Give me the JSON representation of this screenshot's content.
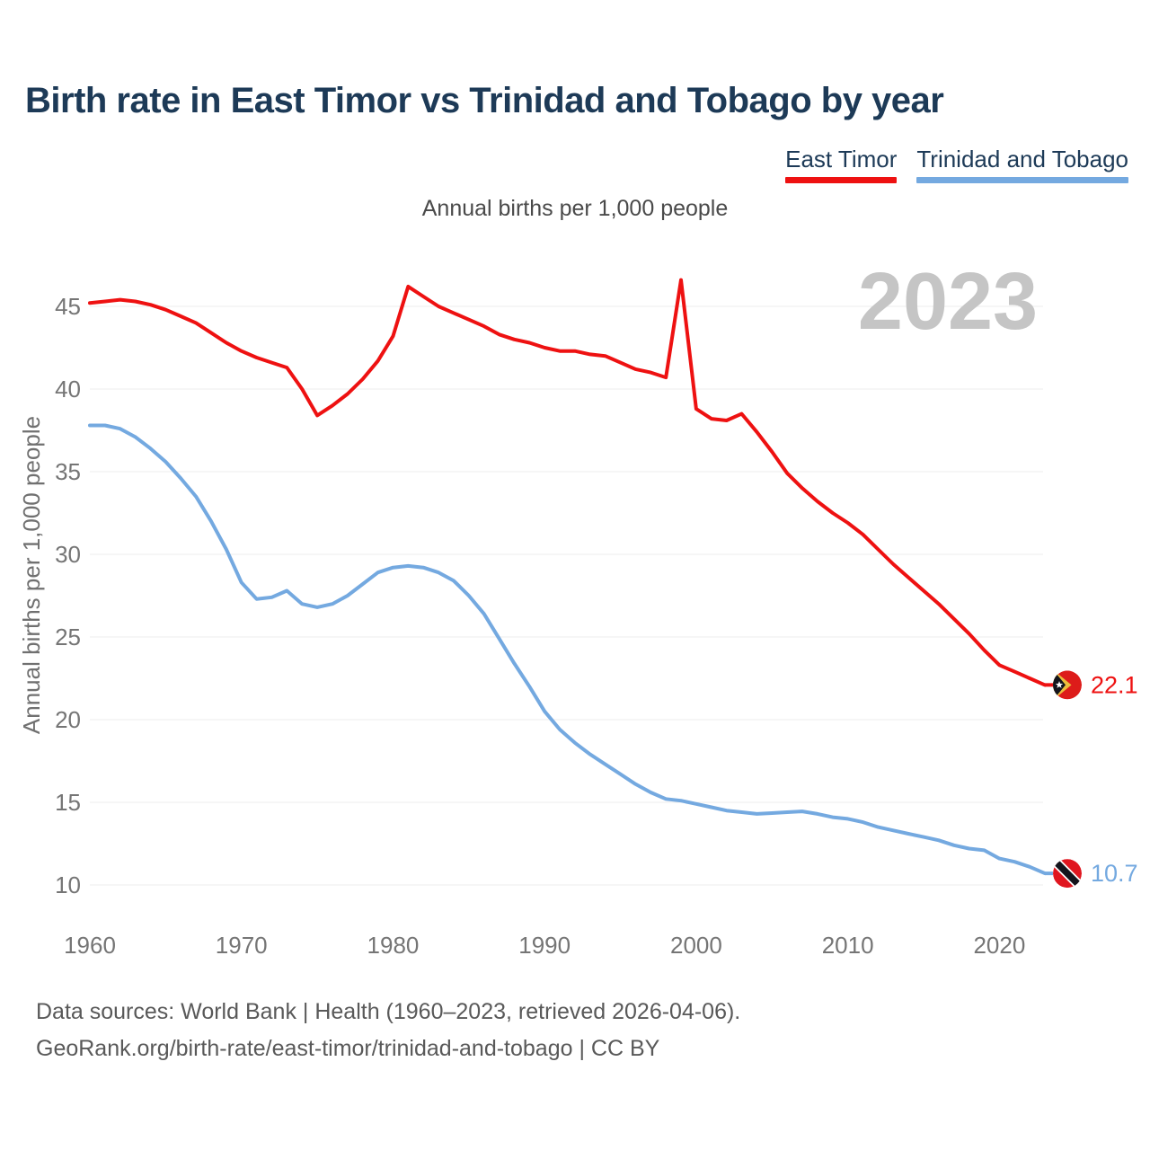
{
  "page": {
    "title": "Birth rate in East Timor vs Trinidad and Tobago by year",
    "subtitle": "Annual births per 1,000 people",
    "footer_line1": "Data sources: World Bank | Health (1960–2023, retrieved 2026-04-06).",
    "footer_line2": "GeoRank.org/birth-rate/east-timor/trinidad-and-tobago | CC BY"
  },
  "legend": {
    "items": [
      {
        "label": "East Timor",
        "color": "#ee1111"
      },
      {
        "label": "Trinidad and Tobago",
        "color": "#74a9e0"
      }
    ]
  },
  "chart_data": {
    "type": "line",
    "title": "Birth rate in East Timor vs Trinidad and Tobago by year",
    "subtitle": "Annual births per 1,000 people",
    "ylabel": "Annual births per 1,000 people",
    "watermark": "2023",
    "grid": true,
    "legend_position": "top-right",
    "xlim": [
      1960,
      2023
    ],
    "ylim": [
      10,
      45
    ],
    "x_ticks": [
      1960,
      1970,
      1980,
      1990,
      2000,
      2010,
      2020
    ],
    "y_ticks": [
      45,
      40,
      35,
      30,
      25,
      20,
      15,
      10
    ],
    "years": [
      1960,
      1961,
      1962,
      1963,
      1964,
      1965,
      1966,
      1967,
      1968,
      1969,
      1970,
      1971,
      1972,
      1973,
      1974,
      1975,
      1976,
      1977,
      1978,
      1979,
      1980,
      1981,
      1982,
      1983,
      1984,
      1985,
      1986,
      1987,
      1988,
      1989,
      1990,
      1991,
      1992,
      1993,
      1994,
      1995,
      1996,
      1997,
      1998,
      1999,
      2000,
      2001,
      2002,
      2003,
      2004,
      2005,
      2006,
      2007,
      2008,
      2009,
      2010,
      2011,
      2012,
      2013,
      2014,
      2015,
      2016,
      2017,
      2018,
      2019,
      2020,
      2021,
      2022,
      2023
    ],
    "series": [
      {
        "name": "East Timor",
        "color": "#ee1111",
        "flag_icon": "east-timor-flag-icon",
        "end_label": "22.1",
        "end_value": 22.1,
        "values": [
          45.2,
          45.3,
          45.4,
          45.3,
          45.1,
          44.8,
          44.4,
          44.0,
          43.4,
          42.8,
          42.3,
          41.9,
          41.6,
          41.3,
          40.0,
          38.4,
          39.0,
          39.7,
          40.6,
          41.7,
          43.2,
          46.2,
          45.6,
          45.0,
          44.6,
          44.2,
          43.8,
          43.3,
          43.0,
          42.8,
          42.5,
          42.3,
          42.3,
          42.1,
          42.0,
          41.6,
          41.2,
          41.0,
          40.7,
          46.6,
          38.8,
          38.2,
          38.1,
          38.5,
          37.4,
          36.2,
          34.9,
          34.0,
          33.2,
          32.5,
          31.9,
          31.2,
          30.3,
          29.4,
          28.6,
          27.8,
          27.0,
          26.1,
          25.2,
          24.2,
          23.3,
          22.9,
          22.5,
          22.1
        ]
      },
      {
        "name": "Trinidad and Tobago",
        "color": "#74a9e0",
        "flag_icon": "trinidad-and-tobago-flag-icon",
        "end_label": "10.7",
        "end_value": 10.7,
        "values": [
          37.8,
          37.8,
          37.6,
          37.1,
          36.4,
          35.6,
          34.6,
          33.5,
          32.0,
          30.3,
          28.3,
          27.3,
          27.4,
          27.8,
          27.0,
          26.8,
          27.0,
          27.5,
          28.2,
          28.9,
          29.2,
          29.3,
          29.2,
          28.9,
          28.4,
          27.5,
          26.4,
          24.9,
          23.4,
          22.0,
          20.5,
          19.4,
          18.6,
          17.9,
          17.3,
          16.7,
          16.1,
          15.6,
          15.2,
          15.1,
          14.9,
          14.7,
          14.5,
          14.4,
          14.3,
          14.35,
          14.4,
          14.45,
          14.3,
          14.1,
          14.0,
          13.8,
          13.5,
          13.3,
          13.1,
          12.9,
          12.7,
          12.4,
          12.2,
          12.1,
          11.6,
          11.4,
          11.1,
          10.7
        ]
      }
    ]
  }
}
